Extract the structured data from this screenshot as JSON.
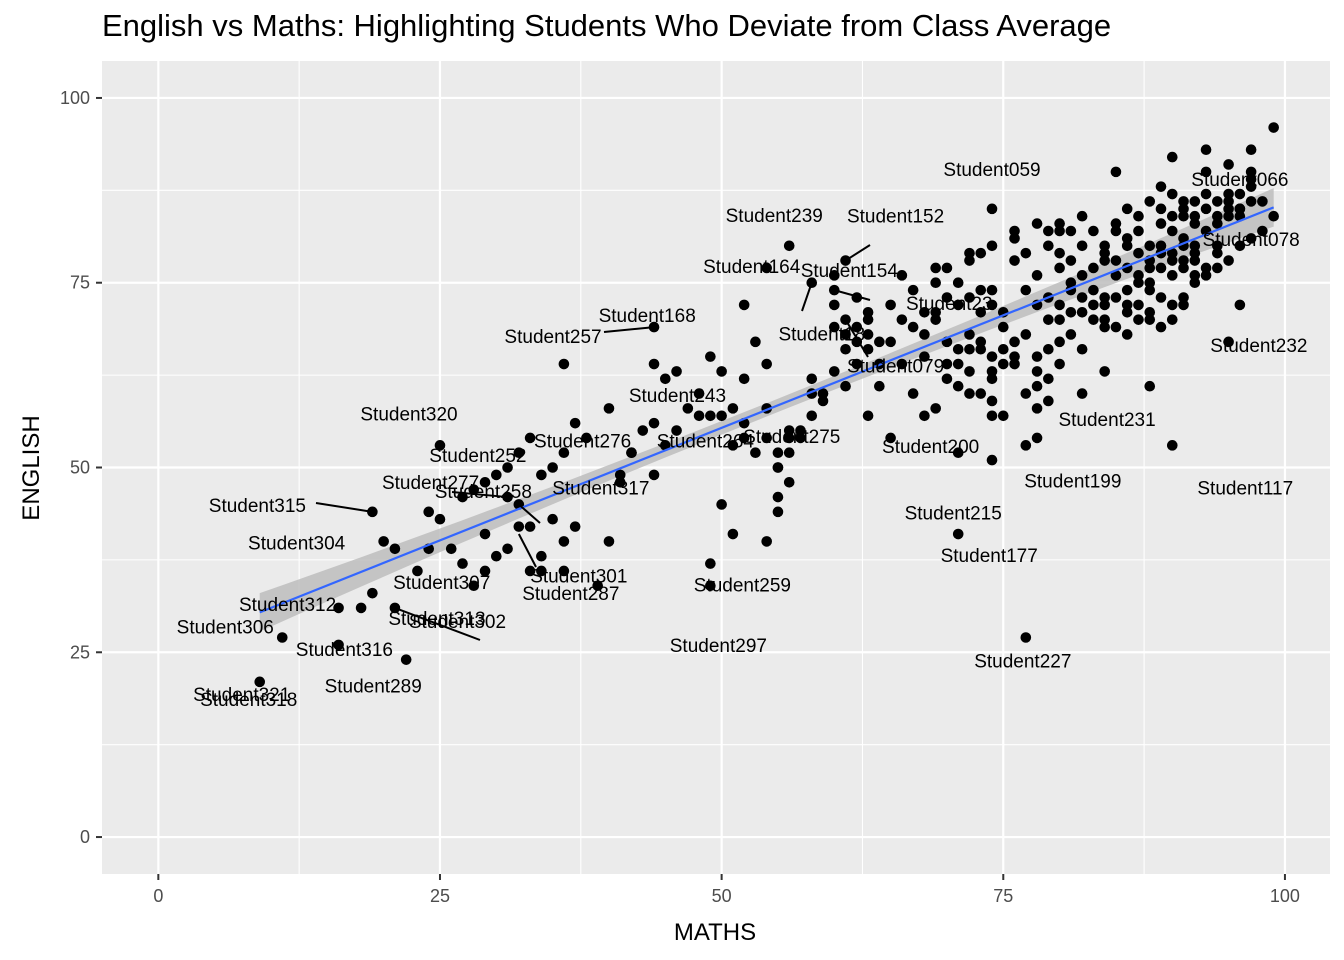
{
  "chart_data": {
    "type": "scatter",
    "title": "English vs Maths: Highlighting Students Who Deviate from Class Average",
    "xlabel": "MATHS",
    "ylabel": "ENGLISH",
    "xlim": [
      -5,
      104
    ],
    "ylim": [
      -5,
      105
    ],
    "x_ticks": [
      0,
      25,
      50,
      75,
      100
    ],
    "y_ticks": [
      0,
      25,
      50,
      75,
      100
    ],
    "grid": true,
    "legend": "none",
    "colors": {
      "panel": "#ebebeb",
      "grid": "#ffffff",
      "points": "#000000",
      "fit_line": "#3366ff",
      "confidence_band": "#bdbdbd"
    },
    "trend_line": {
      "method": "linear",
      "x": [
        9,
        99
      ],
      "y": [
        30.4,
        85.2
      ],
      "band_halfwidth_ends": 2.6,
      "band_halfwidth_center": 0.9
    },
    "points": [
      [
        63,
        71
      ],
      [
        63,
        70
      ],
      [
        65,
        72
      ],
      [
        66,
        70
      ],
      [
        68,
        71
      ],
      [
        69,
        71
      ],
      [
        70,
        73
      ],
      [
        71,
        72
      ],
      [
        72,
        73
      ],
      [
        73,
        71
      ],
      [
        74,
        72
      ],
      [
        75,
        71
      ],
      [
        63,
        66
      ],
      [
        64,
        67
      ],
      [
        65,
        67
      ],
      [
        67,
        69
      ],
      [
        68,
        68
      ],
      [
        69,
        70
      ],
      [
        70,
        67
      ],
      [
        71,
        66
      ],
      [
        72,
        68
      ],
      [
        73,
        66
      ],
      [
        74,
        65
      ],
      [
        75,
        66
      ],
      [
        66,
        64
      ],
      [
        68,
        65
      ],
      [
        70,
        64
      ],
      [
        72,
        63
      ],
      [
        74,
        62
      ],
      [
        76,
        64
      ],
      [
        78,
        63
      ],
      [
        80,
        67
      ],
      [
        82,
        66
      ],
      [
        84,
        69
      ],
      [
        86,
        68
      ],
      [
        88,
        70
      ],
      [
        64,
        61
      ],
      [
        67,
        60
      ],
      [
        69,
        58
      ],
      [
        71,
        61
      ],
      [
        73,
        60
      ],
      [
        75,
        57
      ],
      [
        63,
        57
      ],
      [
        68,
        57
      ],
      [
        74,
        57
      ],
      [
        79,
        62
      ],
      [
        78,
        58
      ],
      [
        82,
        60
      ],
      [
        80,
        72
      ],
      [
        81,
        75
      ],
      [
        82,
        73
      ],
      [
        83,
        74
      ],
      [
        84,
        72
      ],
      [
        85,
        73
      ],
      [
        86,
        74
      ],
      [
        87,
        76
      ],
      [
        88,
        75
      ],
      [
        89,
        77
      ],
      [
        90,
        76
      ],
      [
        91,
        78
      ],
      [
        76,
        78
      ],
      [
        77,
        79
      ],
      [
        78,
        76
      ],
      [
        79,
        80
      ],
      [
        80,
        79
      ],
      [
        81,
        78
      ],
      [
        82,
        80
      ],
      [
        83,
        77
      ],
      [
        84,
        79
      ],
      [
        85,
        78
      ],
      [
        86,
        80
      ],
      [
        87,
        82
      ],
      [
        88,
        80
      ],
      [
        89,
        83
      ],
      [
        90,
        82
      ],
      [
        91,
        84
      ],
      [
        92,
        83
      ],
      [
        93,
        85
      ],
      [
        94,
        84
      ],
      [
        95,
        86
      ],
      [
        96,
        85
      ],
      [
        97,
        88
      ],
      [
        92,
        79
      ],
      [
        94,
        80
      ],
      [
        85,
        83
      ],
      [
        86,
        85
      ],
      [
        87,
        84
      ],
      [
        88,
        86
      ],
      [
        89,
        85
      ],
      [
        90,
        84
      ],
      [
        78,
        83
      ],
      [
        80,
        82
      ],
      [
        82,
        84
      ],
      [
        76,
        82
      ],
      [
        74,
        80
      ],
      [
        72,
        79
      ],
      [
        75,
        69
      ],
      [
        76,
        67
      ],
      [
        77,
        68
      ],
      [
        78,
        65
      ],
      [
        79,
        66
      ],
      [
        80,
        64
      ],
      [
        81,
        68
      ],
      [
        82,
        71
      ],
      [
        83,
        70
      ],
      [
        84,
        73
      ],
      [
        86,
        71
      ],
      [
        87,
        72
      ],
      [
        66,
        76
      ],
      [
        67,
        74
      ],
      [
        69,
        75
      ],
      [
        70,
        77
      ],
      [
        71,
        75
      ],
      [
        73,
        74
      ],
      [
        74,
        74
      ],
      [
        77,
        74
      ],
      [
        78,
        72
      ],
      [
        79,
        70
      ],
      [
        80,
        70
      ],
      [
        81,
        71
      ],
      [
        88,
        74
      ],
      [
        89,
        73
      ],
      [
        90,
        72
      ],
      [
        91,
        73
      ],
      [
        92,
        75
      ],
      [
        93,
        76
      ],
      [
        94,
        77
      ],
      [
        95,
        78
      ],
      [
        96,
        80
      ],
      [
        97,
        81
      ],
      [
        98,
        82
      ],
      [
        99,
        84
      ],
      [
        70,
        62
      ],
      [
        72,
        60
      ],
      [
        71,
        64
      ],
      [
        74,
        59
      ],
      [
        75,
        64
      ],
      [
        77,
        60
      ],
      [
        78,
        61
      ],
      [
        79,
        59
      ],
      [
        73,
        67
      ],
      [
        76,
        65
      ],
      [
        72,
        66
      ],
      [
        74,
        63
      ],
      [
        84,
        78
      ],
      [
        85,
        76
      ],
      [
        86,
        77
      ],
      [
        87,
        75
      ],
      [
        88,
        78
      ],
      [
        89,
        80
      ],
      [
        90,
        79
      ],
      [
        91,
        81
      ],
      [
        92,
        80
      ],
      [
        93,
        82
      ],
      [
        94,
        83
      ],
      [
        95,
        84
      ],
      [
        83,
        82
      ],
      [
        84,
        80
      ],
      [
        85,
        82
      ],
      [
        86,
        81
      ],
      [
        87,
        79
      ],
      [
        88,
        77
      ],
      [
        89,
        79
      ],
      [
        90,
        78
      ],
      [
        91,
        77
      ],
      [
        92,
        76
      ],
      [
        93,
        77
      ],
      [
        94,
        79
      ],
      [
        80,
        77
      ],
      [
        79,
        73
      ],
      [
        81,
        74
      ],
      [
        82,
        76
      ],
      [
        83,
        72
      ],
      [
        84,
        70
      ],
      [
        85,
        69
      ],
      [
        86,
        72
      ],
      [
        87,
        70
      ],
      [
        88,
        71
      ],
      [
        89,
        69
      ],
      [
        90,
        70
      ],
      [
        90,
        92
      ],
      [
        93,
        93
      ],
      [
        95,
        91
      ],
      [
        97,
        93
      ],
      [
        97,
        90
      ],
      [
        97,
        89
      ],
      [
        93,
        90
      ],
      [
        96,
        85
      ],
      [
        91,
        80
      ],
      [
        92,
        78
      ],
      [
        95,
        87
      ],
      [
        96,
        84
      ],
      [
        92,
        86
      ],
      [
        93,
        87
      ],
      [
        94,
        86
      ],
      [
        95,
        85
      ],
      [
        96,
        87
      ],
      [
        97,
        86
      ],
      [
        98,
        86
      ],
      [
        91,
        85
      ],
      [
        89,
        88
      ],
      [
        90,
        87
      ],
      [
        91,
        86
      ],
      [
        92,
        84
      ],
      [
        58,
        75
      ],
      [
        60,
        74
      ],
      [
        60,
        72
      ],
      [
        61,
        70
      ],
      [
        60,
        69
      ],
      [
        62,
        69
      ],
      [
        61,
        68
      ],
      [
        62,
        67
      ],
      [
        63,
        68
      ],
      [
        62,
        64
      ],
      [
        61,
        66
      ],
      [
        64,
        64
      ],
      [
        59,
        59
      ],
      [
        59,
        60
      ],
      [
        58,
        62
      ],
      [
        60,
        63
      ],
      [
        61,
        61
      ],
      [
        58,
        57
      ],
      [
        57,
        55
      ],
      [
        56,
        54
      ],
      [
        56,
        52
      ],
      [
        55,
        50
      ],
      [
        56,
        48
      ],
      [
        55,
        46
      ],
      [
        52,
        72
      ],
      [
        54,
        77
      ],
      [
        56,
        80
      ],
      [
        60,
        76
      ],
      [
        62,
        73
      ],
      [
        50,
        63
      ],
      [
        49,
        65
      ],
      [
        53,
        67
      ],
      [
        54,
        64
      ],
      [
        52,
        62
      ],
      [
        51,
        58
      ],
      [
        50,
        57
      ],
      [
        48,
        60
      ],
      [
        47,
        58
      ],
      [
        46,
        63
      ],
      [
        45,
        62
      ],
      [
        44,
        64
      ],
      [
        44,
        56
      ],
      [
        43,
        55
      ],
      [
        42,
        52
      ],
      [
        41,
        49
      ],
      [
        40,
        58
      ],
      [
        38,
        54
      ],
      [
        37,
        56
      ],
      [
        36,
        64
      ],
      [
        36,
        52
      ],
      [
        35,
        50
      ],
      [
        34,
        49
      ],
      [
        33,
        54
      ],
      [
        32,
        52
      ],
      [
        31,
        50
      ],
      [
        30,
        49
      ],
      [
        29,
        48
      ],
      [
        28,
        47
      ],
      [
        27,
        46
      ],
      [
        25,
        43
      ],
      [
        40,
        40
      ],
      [
        37,
        42
      ],
      [
        35,
        43
      ],
      [
        36,
        40
      ],
      [
        32,
        42
      ],
      [
        33,
        36
      ],
      [
        31,
        39
      ],
      [
        29,
        36
      ],
      [
        30,
        38
      ],
      [
        27,
        37
      ],
      [
        24,
        44
      ],
      [
        23,
        36
      ],
      [
        44,
        49
      ],
      [
        45,
        53
      ],
      [
        46,
        55
      ],
      [
        48,
        57
      ],
      [
        49,
        57
      ],
      [
        51,
        53
      ],
      [
        52,
        54
      ],
      [
        53,
        52
      ],
      [
        54,
        54
      ],
      [
        56,
        55
      ],
      [
        57,
        54
      ],
      [
        58,
        60
      ],
      [
        55,
        52
      ],
      [
        54,
        58
      ],
      [
        55,
        50
      ],
      [
        55,
        44
      ],
      [
        52,
        56
      ],
      [
        51,
        41
      ],
      [
        50,
        45
      ],
      [
        49,
        37
      ],
      [
        49,
        34
      ],
      [
        54,
        40
      ],
      [
        39,
        34
      ],
      [
        41,
        48
      ],
      [
        25,
        53
      ],
      [
        20,
        40
      ],
      [
        21,
        39
      ],
      [
        24,
        39
      ],
      [
        19,
        44
      ],
      [
        19,
        33
      ],
      [
        18,
        31
      ],
      [
        16,
        31
      ],
      [
        16,
        26
      ],
      [
        11,
        27
      ],
      [
        9,
        21
      ],
      [
        22,
        24
      ],
      [
        21,
        31
      ],
      [
        26,
        39
      ],
      [
        28,
        34
      ],
      [
        29,
        41
      ],
      [
        31,
        46
      ],
      [
        32,
        45
      ],
      [
        33,
        42
      ],
      [
        34,
        36
      ],
      [
        36,
        36
      ],
      [
        44,
        69
      ],
      [
        42,
        52
      ],
      [
        34,
        38
      ],
      [
        61,
        78
      ],
      [
        69,
        77
      ],
      [
        72,
        78
      ],
      [
        74,
        85
      ],
      [
        78,
        54
      ],
      [
        77,
        53
      ],
      [
        71,
        52
      ],
      [
        74,
        51
      ],
      [
        71,
        41
      ],
      [
        77,
        27
      ],
      [
        65,
        54
      ],
      [
        90,
        53
      ],
      [
        95,
        67
      ],
      [
        96,
        72
      ],
      [
        91,
        72
      ],
      [
        88,
        61
      ],
      [
        85,
        90
      ],
      [
        99,
        96
      ],
      [
        84,
        63
      ],
      [
        80,
        83
      ],
      [
        79,
        82
      ],
      [
        73,
        79
      ],
      [
        76,
        81
      ],
      [
        81,
        82
      ]
    ],
    "annotations": [
      {
        "label": "Student059",
        "x": 74,
        "y": 85
      },
      {
        "label": "Student066",
        "x": 96,
        "y": 85
      },
      {
        "label": "Student078",
        "x": 97,
        "y": 82
      },
      {
        "label": "Student239",
        "x": 56,
        "y": 80
      },
      {
        "label": "Student152",
        "x": 61,
        "y": 78
      },
      {
        "label": "Student164",
        "x": 54,
        "y": 77
      },
      {
        "label": "Student154",
        "x": 60,
        "y": 74
      },
      {
        "label": "Student168",
        "x": 52,
        "y": 72
      },
      {
        "label": "Student23",
        "x": 60,
        "y": 74
      },
      {
        "label": "Student257",
        "x": 44,
        "y": 69
      },
      {
        "label": "Student243",
        "x": 53,
        "y": 67
      },
      {
        "label": "Student18",
        "x": 58,
        "y": 75
      },
      {
        "label": "Student232",
        "x": 96,
        "y": 72
      },
      {
        "label": "Student079",
        "x": 61,
        "y": 70
      },
      {
        "label": "Student252",
        "x": 36,
        "y": 64
      },
      {
        "label": "Student275",
        "x": 58,
        "y": 62
      },
      {
        "label": "Student320",
        "x": 25,
        "y": 53
      },
      {
        "label": "Student200",
        "x": 65,
        "y": 54
      },
      {
        "label": "Student231",
        "x": 78,
        "y": 54
      },
      {
        "label": "Student258",
        "x": 30,
        "y": 49
      },
      {
        "label": "Student276",
        "x": 35,
        "y": 50
      },
      {
        "label": "Student264",
        "x": 49,
        "y": 53
      },
      {
        "label": "Student199",
        "x": 77,
        "y": 53
      },
      {
        "label": "Student117",
        "x": 90,
        "y": 53
      },
      {
        "label": "Student215",
        "x": 71,
        "y": 52
      },
      {
        "label": "Student315",
        "x": 19,
        "y": 44
      },
      {
        "label": "Student277",
        "x": 31,
        "y": 46
      },
      {
        "label": "Student317",
        "x": 32,
        "y": 45
      },
      {
        "label": "Student301",
        "x": 32,
        "y": 42
      },
      {
        "label": "Student304",
        "x": 20,
        "y": 40
      },
      {
        "label": "Student307",
        "x": 24,
        "y": 39
      },
      {
        "label": "Student287",
        "x": 32,
        "y": 41
      },
      {
        "label": "Student259",
        "x": 49,
        "y": 37
      },
      {
        "label": "Student177",
        "x": 71,
        "y": 41
      },
      {
        "label": "Student312",
        "x": 16,
        "y": 31
      },
      {
        "label": "Student302",
        "x": 23,
        "y": 36
      },
      {
        "label": "Student297",
        "x": 49,
        "y": 34
      },
      {
        "label": "Student306",
        "x": 11,
        "y": 27
      },
      {
        "label": "Student316",
        "x": 19,
        "y": 33
      },
      {
        "label": "Student313",
        "x": 21,
        "y": 31
      },
      {
        "label": "Student318",
        "x": 9,
        "y": 21
      },
      {
        "label": "Student289",
        "x": 22,
        "y": 24
      },
      {
        "label": "Student227",
        "x": 77,
        "y": 27
      },
      {
        "label": "Student321",
        "x": 9,
        "y": 21
      }
    ]
  }
}
